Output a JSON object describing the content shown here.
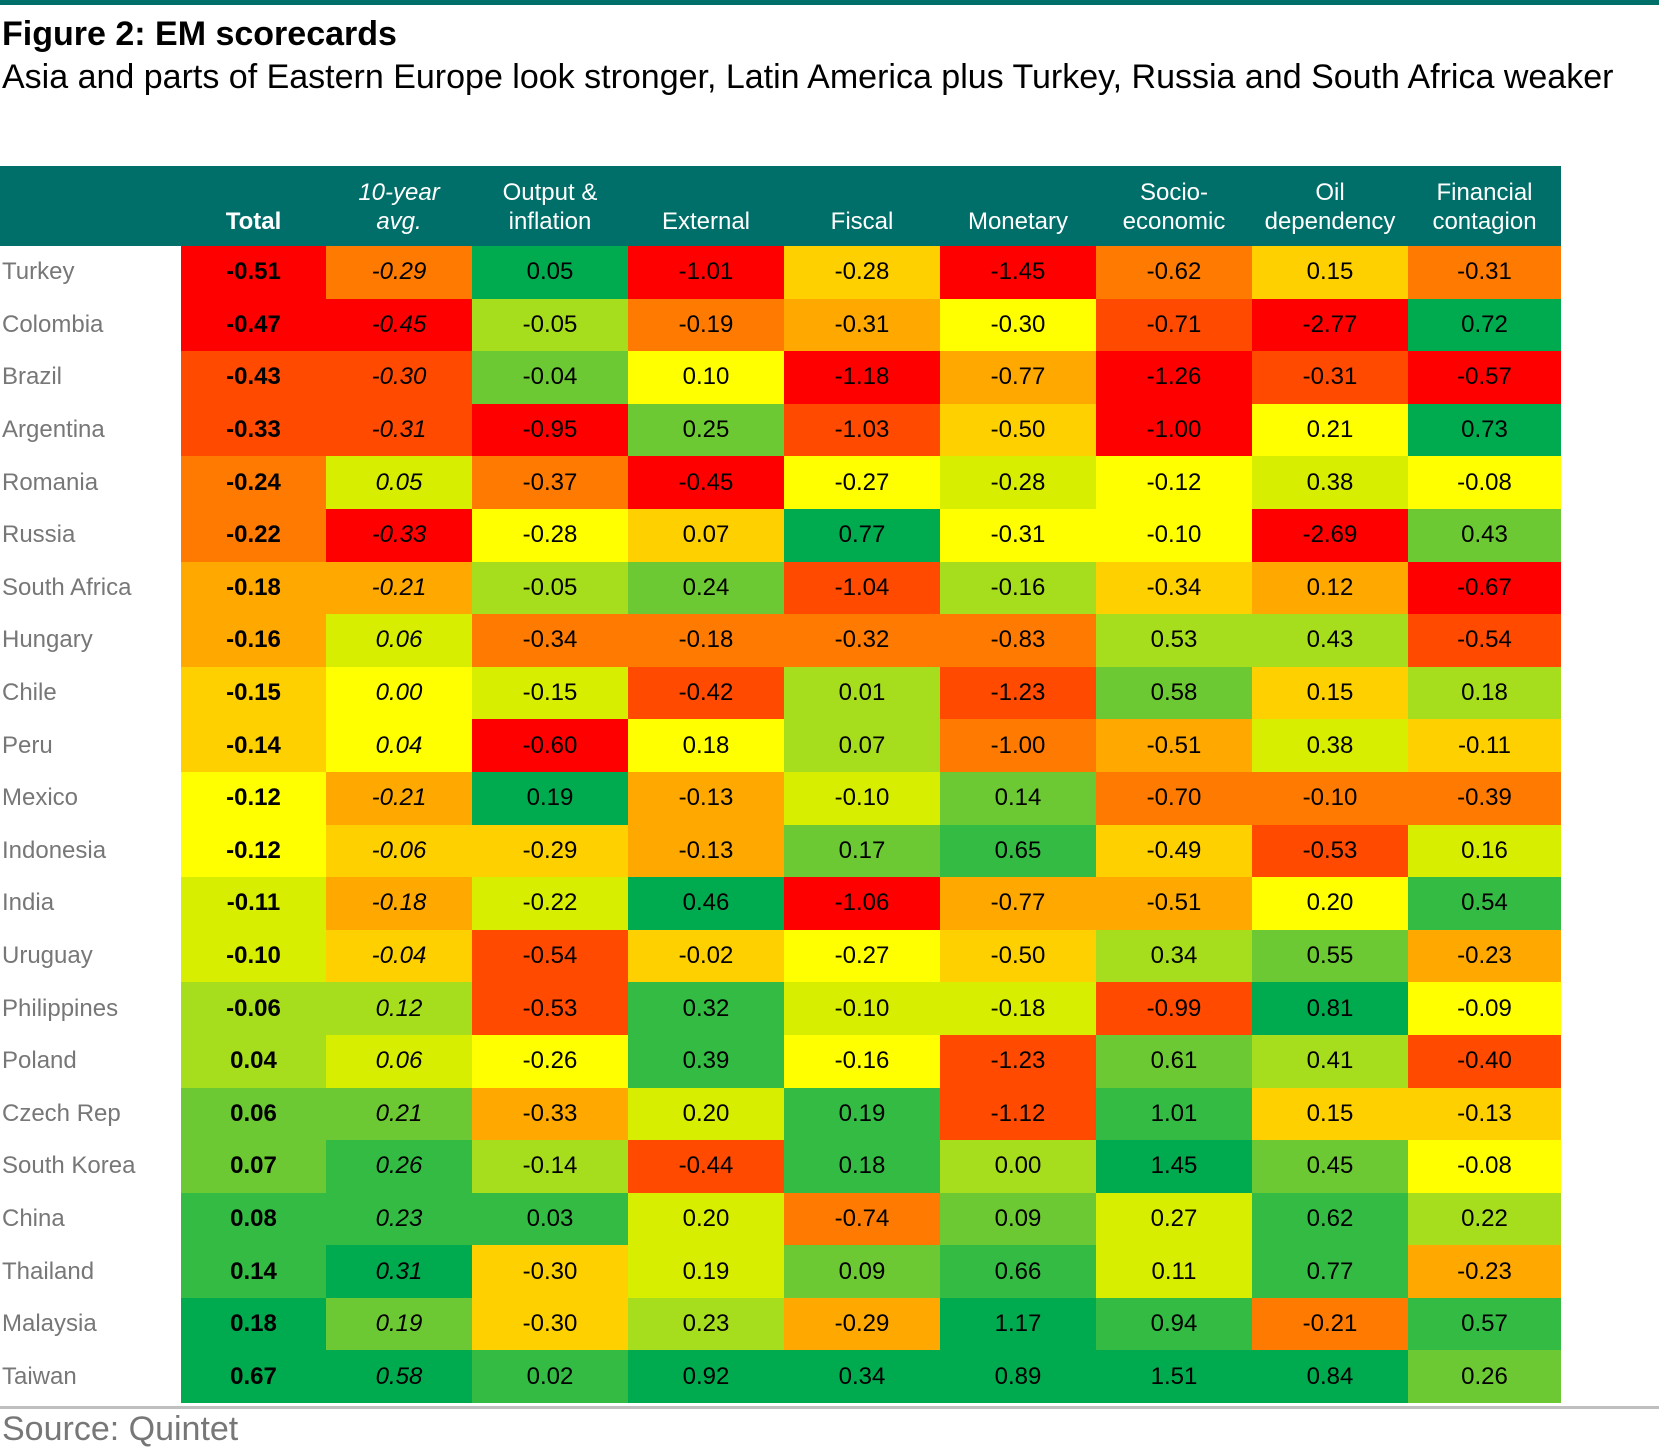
{
  "figure": {
    "title": "Figure 2: EM scorecards",
    "subtitle": "Asia and parts of Eastern Europe look stronger, Latin America plus Turkey, Russia and South Africa weaker",
    "source": "Source: Quintet"
  },
  "chart_data": {
    "type": "heatmap",
    "columns": [
      "Total",
      "10-year avg.",
      "Output & inflation",
      "External",
      "Fiscal",
      "Monetary",
      "Socio-economic",
      "Oil dependency",
      "Financial contagion"
    ],
    "header_lines": [
      [
        "Total"
      ],
      [
        "10-year",
        "avg."
      ],
      [
        "Output &",
        "inflation"
      ],
      [
        "External"
      ],
      [
        "Fiscal"
      ],
      [
        "Monetary"
      ],
      [
        "Socio-",
        "economic"
      ],
      [
        "Oil",
        "dependency"
      ],
      [
        "Financial",
        "contagion"
      ]
    ],
    "rows": [
      {
        "country": "Turkey",
        "values": [
          -0.51,
          -0.29,
          0.05,
          -1.01,
          -0.28,
          -1.45,
          -0.62,
          0.15,
          -0.31
        ]
      },
      {
        "country": "Colombia",
        "values": [
          -0.47,
          -0.45,
          -0.05,
          -0.19,
          -0.31,
          -0.3,
          -0.71,
          -2.77,
          0.72
        ]
      },
      {
        "country": "Brazil",
        "values": [
          -0.43,
          -0.3,
          -0.04,
          0.1,
          -1.18,
          -0.77,
          -1.26,
          -0.31,
          -0.57
        ]
      },
      {
        "country": "Argentina",
        "values": [
          -0.33,
          -0.31,
          -0.95,
          0.25,
          -1.03,
          -0.5,
          -1.0,
          0.21,
          0.73
        ]
      },
      {
        "country": "Romania",
        "values": [
          -0.24,
          0.05,
          -0.37,
          -0.45,
          -0.27,
          -0.28,
          -0.12,
          0.38,
          -0.08
        ]
      },
      {
        "country": "Russia",
        "values": [
          -0.22,
          -0.33,
          -0.28,
          0.07,
          0.77,
          -0.31,
          -0.1,
          -2.69,
          0.43
        ]
      },
      {
        "country": "South Africa",
        "values": [
          -0.18,
          -0.21,
          -0.05,
          0.24,
          -1.04,
          -0.16,
          -0.34,
          0.12,
          -0.67
        ]
      },
      {
        "country": "Hungary",
        "values": [
          -0.16,
          0.06,
          -0.34,
          -0.18,
          -0.32,
          -0.83,
          0.53,
          0.43,
          -0.54
        ]
      },
      {
        "country": "Chile",
        "values": [
          -0.15,
          0.0,
          -0.15,
          -0.42,
          0.01,
          -1.23,
          0.58,
          0.15,
          0.18
        ]
      },
      {
        "country": "Peru",
        "values": [
          -0.14,
          0.04,
          -0.6,
          0.18,
          0.07,
          -1.0,
          -0.51,
          0.38,
          -0.11
        ]
      },
      {
        "country": "Mexico",
        "values": [
          -0.12,
          -0.21,
          0.19,
          -0.13,
          -0.1,
          0.14,
          -0.7,
          -0.1,
          -0.39
        ]
      },
      {
        "country": "Indonesia",
        "values": [
          -0.12,
          -0.06,
          -0.29,
          -0.13,
          0.17,
          0.65,
          -0.49,
          -0.53,
          0.16
        ]
      },
      {
        "country": "India",
        "values": [
          -0.11,
          -0.18,
          -0.22,
          0.46,
          -1.06,
          -0.77,
          -0.51,
          0.2,
          0.54
        ]
      },
      {
        "country": "Uruguay",
        "values": [
          -0.1,
          -0.04,
          -0.54,
          -0.02,
          -0.27,
          -0.5,
          0.34,
          0.55,
          -0.23
        ]
      },
      {
        "country": "Philippines",
        "values": [
          -0.06,
          0.12,
          -0.53,
          0.32,
          -0.1,
          -0.18,
          -0.99,
          0.81,
          -0.09
        ]
      },
      {
        "country": "Poland",
        "values": [
          0.04,
          0.06,
          -0.26,
          0.39,
          -0.16,
          -1.23,
          0.61,
          0.41,
          -0.4
        ]
      },
      {
        "country": "Czech Rep",
        "values": [
          0.06,
          0.21,
          -0.33,
          0.2,
          0.19,
          -1.12,
          1.01,
          0.15,
          -0.13
        ]
      },
      {
        "country": "South Korea",
        "values": [
          0.07,
          0.26,
          -0.14,
          -0.44,
          0.18,
          0.0,
          1.45,
          0.45,
          -0.08
        ]
      },
      {
        "country": "China",
        "values": [
          0.08,
          0.23,
          0.03,
          0.2,
          -0.74,
          0.09,
          0.27,
          0.62,
          0.22
        ]
      },
      {
        "country": "Thailand",
        "values": [
          0.14,
          0.31,
          -0.3,
          0.19,
          0.09,
          0.66,
          0.11,
          0.77,
          -0.23
        ]
      },
      {
        "country": "Malaysia",
        "values": [
          0.18,
          0.19,
          -0.3,
          0.23,
          -0.29,
          1.17,
          0.94,
          -0.21,
          0.57
        ]
      },
      {
        "country": "Taiwan",
        "values": [
          0.67,
          0.58,
          0.02,
          0.92,
          0.34,
          0.89,
          1.51,
          0.84,
          0.26
        ]
      }
    ]
  },
  "colors": {
    "header_bg": "#006f6a",
    "header_text": "#ffffff",
    "country_text": "#777777",
    "scale": [
      "#ff0000",
      "#ff4a00",
      "#ff7a00",
      "#ffa800",
      "#ffd000",
      "#ffff00",
      "#d8ee00",
      "#a6de1e",
      "#6cc933",
      "#33bb44",
      "#00aa4e"
    ]
  }
}
